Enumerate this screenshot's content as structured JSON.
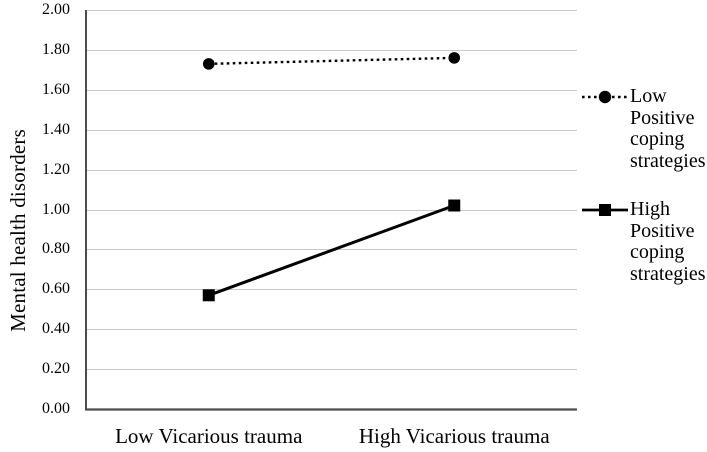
{
  "chart_data": {
    "type": "line",
    "title": "",
    "xlabel": "",
    "ylabel": "Mental health disorders",
    "categories": [
      "Low Vicarious trauma",
      "High Vicarious trauma"
    ],
    "series": [
      {
        "name": "Low Positive coping strategies",
        "values": [
          1.73,
          1.76
        ],
        "line_style": "dotted",
        "marker": "circle"
      },
      {
        "name": "High Positive coping strategies",
        "values": [
          0.57,
          1.02
        ],
        "line_style": "solid",
        "marker": "square"
      }
    ],
    "ylim": [
      0,
      2
    ],
    "ytick_step": 0.2,
    "ytick_labels": [
      "2.00",
      "1.80",
      "1.60",
      "1.40",
      "1.20",
      "1.00",
      "0.80",
      "0.60",
      "0.40",
      "0.20",
      "0.00"
    ],
    "grid": "horizontal",
    "legend_position": "right",
    "colors": {
      "series": "#000000",
      "gridline": "#c9c9c9",
      "axis": "#4d4d4d",
      "text": "#000000",
      "background": "#ffffff"
    }
  }
}
